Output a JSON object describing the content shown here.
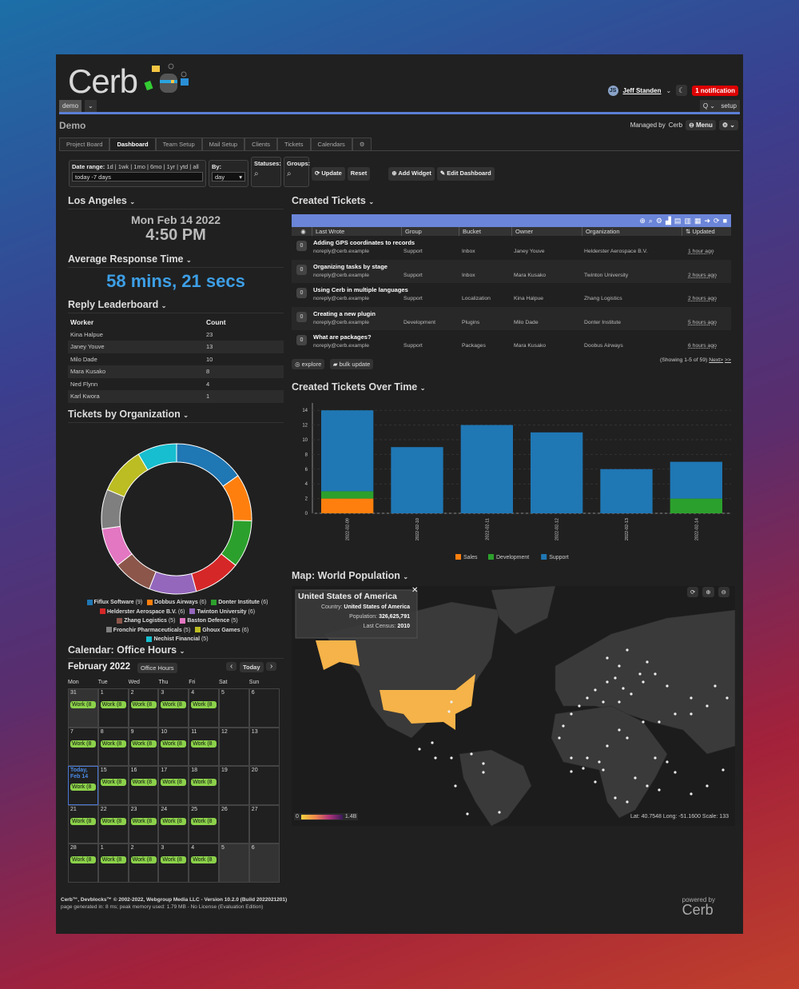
{
  "header": {
    "logo": "Cerb",
    "user": "Jeff Standen",
    "user_initials": "JS",
    "notification": "1 notification",
    "workspace": "demo",
    "search_label": "Q",
    "setup": "setup"
  },
  "page": {
    "title": "Demo",
    "managed_by": "Managed by",
    "managed_org": "Cerb",
    "menu": "Menu"
  },
  "tabs": [
    "Project Board",
    "Dashboard",
    "Team Setup",
    "Mail Setup",
    "Clients",
    "Tickets",
    "Calendars",
    "⚙"
  ],
  "filters": {
    "date_label": "Date range:",
    "date_shortcuts": "1d | 1wk | 1mo | 6mo | 1yr | ytd | all",
    "date_value": "today -7 days",
    "by_label": "By:",
    "by_value": "day",
    "statuses": "Statuses:",
    "groups": "Groups:",
    "update": "Update",
    "reset": "Reset",
    "add_widget": "Add Widget",
    "edit_dashboard": "Edit Dashboard"
  },
  "clock": {
    "title": "Los Angeles",
    "date": "Mon Feb 14 2022",
    "time": "4:50 PM"
  },
  "response": {
    "title": "Average Response Time",
    "value": "58 mins, 21 secs"
  },
  "leaderboard": {
    "title": "Reply Leaderboard",
    "columns": [
      "Worker",
      "Count"
    ],
    "rows": [
      [
        "Kina Halpue",
        "23"
      ],
      [
        "Janey Youve",
        "13"
      ],
      [
        "Milo Dade",
        "10"
      ],
      [
        "Mara Kusako",
        "8"
      ],
      [
        "Ned Flynn",
        "4"
      ],
      [
        "Karl Kwora",
        "1"
      ]
    ]
  },
  "orgs": {
    "title": "Tickets by Organization",
    "chart_data": {
      "type": "pie",
      "slices": [
        {
          "label": "Fiflux Software",
          "value": 9,
          "color": "#1f77b4"
        },
        {
          "label": "Dobbus Airways",
          "value": 6,
          "color": "#ff7f0e"
        },
        {
          "label": "Donter Institute",
          "value": 6,
          "color": "#2ca02c"
        },
        {
          "label": "Helderster Aerospace B.V.",
          "value": 6,
          "color": "#d62728"
        },
        {
          "label": "Twinton University",
          "value": 6,
          "color": "#9467bd"
        },
        {
          "label": "Zhang Logistics",
          "value": 5,
          "color": "#8c564b"
        },
        {
          "label": "Baston Defence",
          "value": 5,
          "color": "#e377c2"
        },
        {
          "label": "Fronchir Pharmaceuticals",
          "value": 5,
          "color": "#7f7f7f"
        },
        {
          "label": "Ghoux Games",
          "value": 6,
          "color": "#bcbd22"
        },
        {
          "label": "Nechist Financial",
          "value": 5,
          "color": "#17becf"
        }
      ]
    }
  },
  "calendar": {
    "title": "Calendar: Office Hours",
    "month": "February 2022",
    "cal_name": "Office Hours",
    "today_btn": "Today",
    "days": [
      "Mon",
      "Tue",
      "Wed",
      "Thu",
      "Fri",
      "Sat",
      "Sun"
    ],
    "weeks": [
      [
        "31",
        "1",
        "2",
        "3",
        "4",
        "5",
        "6"
      ],
      [
        "7",
        "8",
        "9",
        "10",
        "11",
        "12",
        "13"
      ],
      [
        "Today, Feb 14",
        "15",
        "16",
        "17",
        "18",
        "19",
        "20"
      ],
      [
        "21",
        "22",
        "23",
        "24",
        "25",
        "26",
        "27"
      ],
      [
        "28",
        "1",
        "2",
        "3",
        "4",
        "5",
        "6"
      ]
    ],
    "event": "Work (8"
  },
  "tickets": {
    "title": "Created Tickets",
    "columns": [
      "Last Wrote",
      "Group",
      "Bucket",
      "Owner",
      "Organization",
      "Updated"
    ],
    "rows": [
      {
        "subject": "Adding GPS coordinates to records",
        "from": "noreply@cerb.example",
        "group": "Support",
        "bucket": "Inbox",
        "owner": "Janey Youve",
        "org": "Helderster Aerospace B.V.",
        "updated": "1 hour ago",
        "count": "0"
      },
      {
        "subject": "Organizing tasks by stage",
        "from": "noreply@cerb.example",
        "group": "Support",
        "bucket": "Inbox",
        "owner": "Mara Kusako",
        "org": "Twinton University",
        "updated": "2 hours ago",
        "count": "0"
      },
      {
        "subject": "Using Cerb in multiple languages",
        "from": "noreply@cerb.example",
        "group": "Support",
        "bucket": "Localization",
        "owner": "Kina Halpue",
        "org": "Zhang Logistics",
        "updated": "2 hours ago",
        "count": "0"
      },
      {
        "subject": "Creating a new plugin",
        "from": "noreply@cerb.example",
        "group": "Development",
        "bucket": "Plugins",
        "owner": "Milo Dade",
        "org": "Donter Institute",
        "updated": "5 hours ago",
        "count": "0"
      },
      {
        "subject": "What are packages?",
        "from": "noreply@cerb.example",
        "group": "Support",
        "bucket": "Packages",
        "owner": "Mara Kusako",
        "org": "Doobus Airways",
        "updated": "6 hours ago",
        "count": "0"
      }
    ],
    "explore": "explore",
    "bulk": "bulk update",
    "paging": "(Showing 1-5 of 59)",
    "next": "Next>",
    "last": ">>"
  },
  "overtime": {
    "title": "Created Tickets Over Time",
    "chart_data": {
      "type": "bar",
      "stacked": true,
      "categories": [
        "2022-02-09",
        "2022-02-10",
        "2022-02-11",
        "2022-02-12",
        "2022-02-13",
        "2022-02-14"
      ],
      "series": [
        {
          "name": "Sales",
          "color": "#ff7f0e",
          "values": [
            2,
            0,
            0,
            0,
            0,
            0
          ]
        },
        {
          "name": "Development",
          "color": "#2ca02c",
          "values": [
            1,
            0,
            0,
            0,
            0,
            2
          ]
        },
        {
          "name": "Support",
          "color": "#1f77b4",
          "values": [
            11,
            9,
            12,
            11,
            6,
            5
          ]
        }
      ],
      "yticks": [
        0,
        2,
        4,
        6,
        8,
        10,
        12,
        14
      ],
      "ylim": [
        0,
        15
      ],
      "legend": "bottom"
    }
  },
  "map": {
    "title": "Map: World Population",
    "tooltip_title": "United States of America",
    "tooltip_rows": [
      [
        "Country:",
        "United States of America"
      ],
      [
        "Population:",
        "326,625,791"
      ],
      [
        "Last Census:",
        "2010"
      ]
    ],
    "scale_min": "0",
    "scale_max": "1.4B",
    "status": "Lat: 40.7548 Long: -51.1600 Scale: 133",
    "highlight": "#f5b349"
  },
  "footer": {
    "line1": "Cerb™, Devblocks™ © 2002-2022, Webgroup Media LLC - Version 10.2.0 (Build 2022021201)",
    "line2": "page generated in: 8 ms; peak memory used: 1.79 MB - No License (Evaluation Edition)",
    "powered": "powered by",
    "logo": "Cerb"
  }
}
